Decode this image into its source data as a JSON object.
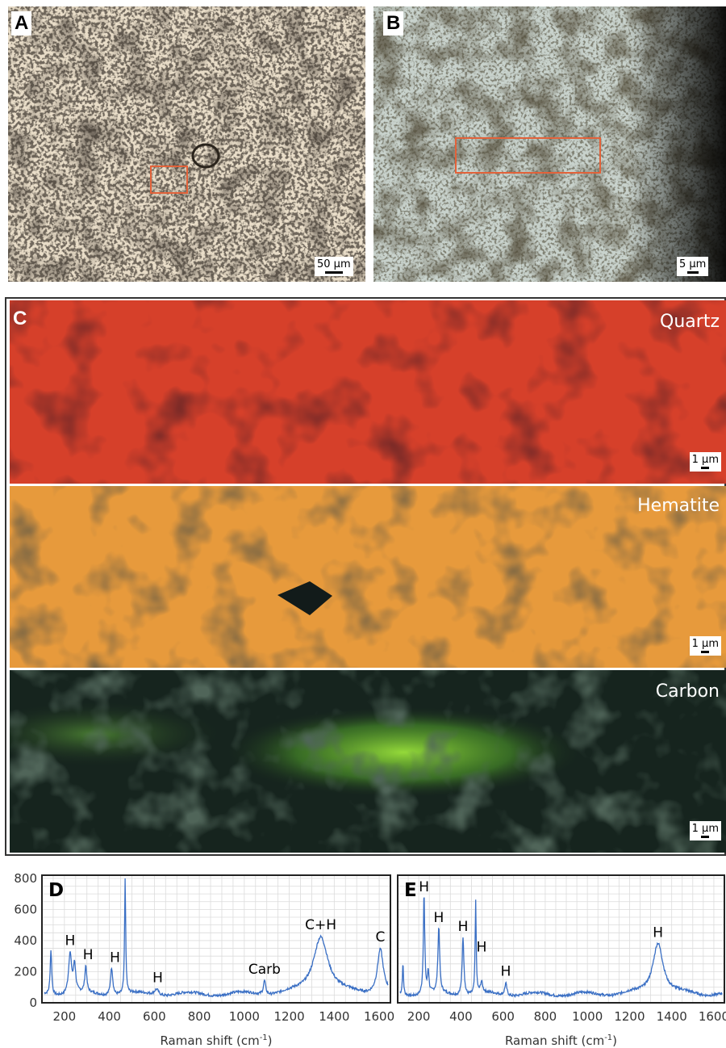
{
  "panels": {
    "A": {
      "label": "A",
      "scale": "50 µm"
    },
    "B": {
      "label": "B",
      "scale": "5 µm"
    },
    "C": {
      "label": "C",
      "maps": [
        {
          "name": "Quartz",
          "scale": "1 µm",
          "color": "#e0462a"
        },
        {
          "name": "Hematite",
          "scale": "1 µm",
          "color": "#f3a23a"
        },
        {
          "name": "Carbon",
          "scale": "1 µm",
          "color": "#8fe23a"
        }
      ]
    }
  },
  "spectra": {
    "line_color": "#3a6fc4",
    "D": {
      "label": "D",
      "xlabel": "Raman shift (cm",
      "xlabel_sup": "-1",
      "xlabel_end": ")",
      "xticks": [
        "200",
        "400",
        "600",
        "800",
        "1000",
        "1200",
        "1400",
        "1600"
      ],
      "yticks": [
        "800",
        "600",
        "400",
        "200",
        "0"
      ],
      "peak_labels": [
        {
          "text": "H",
          "x": 225
        },
        {
          "text": "H",
          "x": 305
        },
        {
          "text": "H",
          "x": 425
        },
        {
          "text": "H",
          "x": 615
        },
        {
          "text": "Carb",
          "x": 1090
        },
        {
          "text": "C+H",
          "x": 1340
        },
        {
          "text": "C",
          "x": 1605
        }
      ]
    },
    "E": {
      "label": "E",
      "xlabel": "Raman shift (cm",
      "xlabel_sup": "-1",
      "xlabel_end": ")",
      "xticks": [
        "200",
        "400",
        "600",
        "800",
        "1000",
        "1200",
        "1400",
        "1600"
      ],
      "peak_labels": [
        {
          "text": "H",
          "x": 225
        },
        {
          "text": "H",
          "x": 295
        },
        {
          "text": "H",
          "x": 410
        },
        {
          "text": "H",
          "x": 498
        },
        {
          "text": "H",
          "x": 613
        },
        {
          "text": "H",
          "x": 1335
        }
      ]
    }
  }
}
